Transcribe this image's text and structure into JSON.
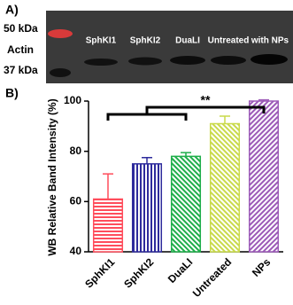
{
  "panel_a": {
    "label": "A)",
    "markers": [
      "50 kDa",
      "Actin",
      "37 kDa"
    ],
    "lanes": [
      "SphKI1",
      "SphKI2",
      "DuaLI",
      "Untreated",
      "with NPs"
    ]
  },
  "chart_data": {
    "type": "bar",
    "panel_label": "B)",
    "y_label": "WB Relative Band Intensity (%)",
    "categories": [
      "SphKI1",
      "SphKI2",
      "DuaLI",
      "Untreated",
      "NPs"
    ],
    "values": [
      61,
      75,
      78,
      91,
      100
    ],
    "errors": [
      10,
      2.5,
      1.5,
      3,
      0.5
    ],
    "colors": [
      "#ff4d5c",
      "#2e2b9c",
      "#1fae4a",
      "#c9da4b",
      "#9c5ab8"
    ],
    "ylim": [
      40,
      100
    ],
    "yticks": [
      40,
      60,
      80,
      100
    ],
    "annotation": "**"
  }
}
